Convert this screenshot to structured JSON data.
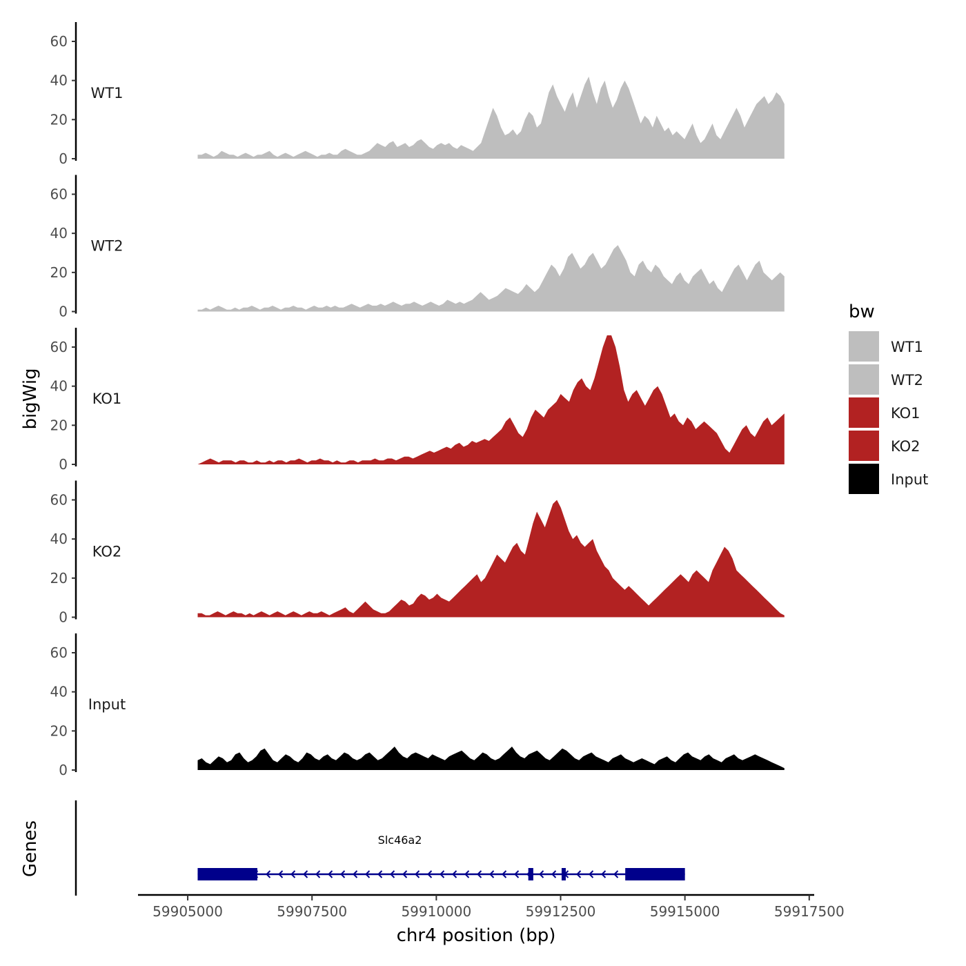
{
  "chart_data": {
    "type": "area",
    "layout": "stacked coverage tracks with shared x axis and gene annotation track",
    "ylabel": "bigWig",
    "xlabel": "chr4 position (bp)",
    "xlim": [
      59904000,
      59917600
    ],
    "x_range_data": [
      59905200,
      59917000
    ],
    "ylim": [
      0,
      70
    ],
    "yticks": [
      0,
      20,
      40,
      60
    ],
    "xticks": [
      59905000,
      59907500,
      59910000,
      59912500,
      59915000,
      59917500
    ],
    "xtick_labels": [
      "59905000",
      "59907500",
      "59910000",
      "59912500",
      "59915000",
      "59917500"
    ],
    "legend": {
      "title": "bw",
      "position": "right",
      "entries": [
        {
          "label": "WT1",
          "color": "#bebebe"
        },
        {
          "label": "WT2",
          "color": "#bebebe"
        },
        {
          "label": "KO1",
          "color": "#b22222"
        },
        {
          "label": "KO2",
          "color": "#b22222"
        },
        {
          "label": "Input",
          "color": "#000000"
        }
      ]
    },
    "series": [
      {
        "name": "WT1",
        "color": "#bebebe",
        "values": [
          2,
          2,
          3,
          2,
          1,
          2,
          4,
          3,
          2,
          2,
          1,
          2,
          3,
          2,
          1,
          2,
          2,
          3,
          4,
          2,
          1,
          2,
          3,
          2,
          1,
          2,
          3,
          4,
          3,
          2,
          1,
          2,
          2,
          3,
          2,
          2,
          4,
          5,
          4,
          3,
          2,
          2,
          3,
          4,
          6,
          8,
          7,
          6,
          8,
          9,
          6,
          7,
          8,
          6,
          7,
          9,
          10,
          8,
          6,
          5,
          7,
          8,
          7,
          8,
          6,
          5,
          7,
          6,
          5,
          4,
          6,
          8,
          14,
          20,
          26,
          22,
          16,
          12,
          13,
          15,
          12,
          14,
          20,
          24,
          22,
          16,
          18,
          26,
          34,
          38,
          32,
          28,
          24,
          30,
          34,
          26,
          32,
          38,
          42,
          34,
          28,
          36,
          40,
          32,
          26,
          30,
          36,
          40,
          36,
          30,
          24,
          18,
          22,
          20,
          16,
          22,
          18,
          14,
          16,
          12,
          14,
          12,
          10,
          14,
          18,
          12,
          8,
          10,
          14,
          18,
          12,
          10,
          14,
          18,
          22,
          26,
          22,
          16,
          20,
          24,
          28,
          30,
          32,
          28,
          30,
          34,
          32,
          28
        ]
      },
      {
        "name": "WT2",
        "color": "#bebebe",
        "values": [
          1,
          1,
          2,
          1,
          2,
          3,
          2,
          1,
          1,
          2,
          1,
          2,
          2,
          3,
          2,
          1,
          2,
          2,
          3,
          2,
          1,
          2,
          2,
          3,
          2,
          2,
          1,
          2,
          3,
          2,
          2,
          3,
          2,
          3,
          2,
          2,
          3,
          4,
          3,
          2,
          3,
          4,
          3,
          3,
          4,
          3,
          4,
          5,
          4,
          3,
          4,
          4,
          5,
          4,
          3,
          4,
          5,
          4,
          3,
          4,
          6,
          5,
          4,
          5,
          4,
          5,
          6,
          8,
          10,
          8,
          6,
          7,
          8,
          10,
          12,
          11,
          10,
          9,
          11,
          14,
          12,
          10,
          12,
          16,
          20,
          24,
          22,
          18,
          22,
          28,
          30,
          26,
          22,
          24,
          28,
          30,
          26,
          22,
          24,
          28,
          32,
          34,
          30,
          26,
          20,
          18,
          24,
          26,
          22,
          20,
          24,
          22,
          18,
          16,
          14,
          18,
          20,
          16,
          14,
          18,
          20,
          22,
          18,
          14,
          16,
          12,
          10,
          14,
          18,
          22,
          24,
          20,
          16,
          20,
          24,
          26,
          20,
          18,
          16,
          18,
          20,
          18
        ]
      },
      {
        "name": "KO1",
        "color": "#b22222",
        "values": [
          0,
          1,
          2,
          3,
          2,
          1,
          2,
          2,
          2,
          1,
          2,
          2,
          1,
          1,
          2,
          1,
          1,
          2,
          1,
          2,
          2,
          1,
          2,
          2,
          3,
          2,
          1,
          2,
          2,
          3,
          2,
          2,
          1,
          2,
          1,
          1,
          2,
          2,
          1,
          2,
          2,
          2,
          3,
          2,
          2,
          3,
          3,
          2,
          3,
          4,
          4,
          3,
          4,
          5,
          6,
          7,
          6,
          7,
          8,
          9,
          8,
          10,
          11,
          9,
          10,
          12,
          11,
          12,
          13,
          12,
          14,
          16,
          18,
          22,
          24,
          20,
          16,
          14,
          18,
          24,
          28,
          26,
          24,
          28,
          30,
          32,
          36,
          34,
          32,
          38,
          42,
          44,
          40,
          38,
          44,
          52,
          60,
          66,
          66,
          60,
          50,
          38,
          32,
          36,
          38,
          34,
          30,
          34,
          38,
          40,
          36,
          30,
          24,
          26,
          22,
          20,
          24,
          22,
          18,
          20,
          22,
          20,
          18,
          16,
          12,
          8,
          6,
          10,
          14,
          18,
          20,
          16,
          14,
          18,
          22,
          24,
          20,
          22,
          24,
          26
        ]
      },
      {
        "name": "KO2",
        "color": "#b22222",
        "values": [
          2,
          2,
          1,
          1,
          2,
          3,
          2,
          1,
          2,
          3,
          2,
          2,
          1,
          2,
          1,
          2,
          3,
          2,
          1,
          2,
          3,
          2,
          1,
          2,
          3,
          2,
          1,
          2,
          3,
          2,
          2,
          3,
          2,
          1,
          2,
          3,
          4,
          5,
          3,
          2,
          4,
          6,
          8,
          6,
          4,
          3,
          2,
          2,
          3,
          5,
          7,
          9,
          8,
          6,
          7,
          10,
          12,
          11,
          9,
          10,
          12,
          10,
          9,
          8,
          10,
          12,
          14,
          16,
          18,
          20,
          22,
          18,
          20,
          24,
          28,
          32,
          30,
          28,
          32,
          36,
          38,
          34,
          32,
          40,
          48,
          54,
          50,
          46,
          52,
          58,
          60,
          56,
          50,
          44,
          40,
          42,
          38,
          36,
          38,
          40,
          34,
          30,
          26,
          24,
          20,
          18,
          16,
          14,
          16,
          14,
          12,
          10,
          8,
          6,
          8,
          10,
          12,
          14,
          16,
          18,
          20,
          22,
          20,
          18,
          22,
          24,
          22,
          20,
          18,
          24,
          28,
          32,
          36,
          34,
          30,
          24,
          22,
          20,
          18,
          16,
          14,
          12,
          10,
          8,
          6,
          4,
          2,
          1
        ]
      },
      {
        "name": "Input",
        "color": "#000000",
        "values": [
          5,
          6,
          4,
          3,
          5,
          7,
          6,
          4,
          5,
          8,
          9,
          6,
          4,
          5,
          7,
          10,
          11,
          8,
          5,
          4,
          6,
          8,
          7,
          5,
          4,
          6,
          9,
          8,
          6,
          5,
          7,
          8,
          6,
          5,
          7,
          9,
          8,
          6,
          5,
          6,
          8,
          9,
          7,
          5,
          6,
          8,
          10,
          12,
          9,
          7,
          6,
          8,
          9,
          8,
          7,
          6,
          8,
          7,
          6,
          5,
          7,
          8,
          9,
          10,
          8,
          6,
          5,
          7,
          9,
          8,
          6,
          5,
          6,
          8,
          10,
          12,
          9,
          7,
          6,
          8,
          9,
          10,
          8,
          6,
          5,
          7,
          9,
          11,
          10,
          8,
          6,
          5,
          7,
          8,
          9,
          7,
          6,
          5,
          4,
          6,
          7,
          8,
          6,
          5,
          4,
          5,
          6,
          5,
          4,
          3,
          5,
          6,
          7,
          5,
          4,
          6,
          8,
          9,
          7,
          6,
          5,
          7,
          8,
          6,
          5,
          4,
          6,
          7,
          8,
          6,
          5,
          6,
          7,
          8,
          7,
          6,
          5,
          4,
          3,
          2,
          1
        ]
      }
    ],
    "genes": [
      {
        "name": "Slc46a2",
        "strand": "-",
        "start": 59905200,
        "end": 59915000,
        "exons": [
          [
            59905200,
            59906400
          ],
          [
            59911850,
            59911950
          ],
          [
            59912520,
            59912600
          ],
          [
            59913800,
            59915000
          ]
        ]
      }
    ],
    "genes_track_title": "Genes"
  }
}
